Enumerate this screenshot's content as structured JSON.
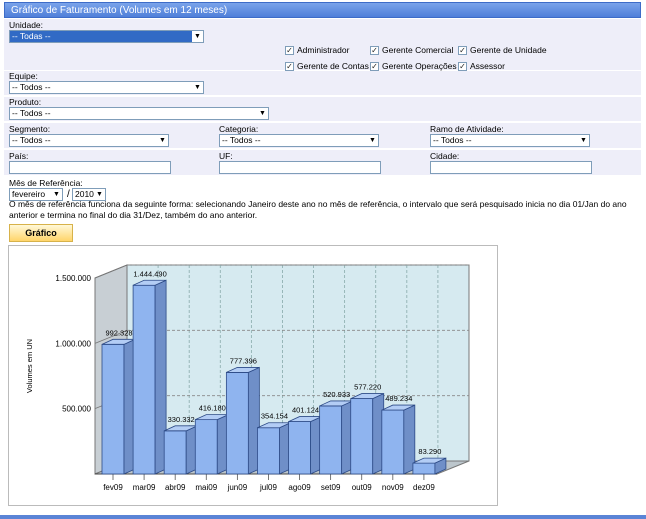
{
  "title": "Gráfico de Faturamento (Volumes em 12 meses)",
  "filters": {
    "unidade_label": "Unidade:",
    "unidade_value": "-- Todas --",
    "equipe_label": "Equipe:",
    "equipe_value": "-- Todos --",
    "produto_label": "Produto:",
    "produto_value": "-- Todos --",
    "segmento_label": "Segmento:",
    "segmento_value": "-- Todos --",
    "categoria_label": "Categoria:",
    "categoria_value": "-- Todos --",
    "ramo_label": "Ramo de Atividade:",
    "ramo_value": "-- Todos --",
    "pais_label": "País:",
    "uf_label": "UF:",
    "cidade_label": "Cidade:",
    "mes_label": "Mês de Referência:",
    "mes_value": "fevereiro",
    "ano_sep": "/",
    "ano_value": "2010"
  },
  "roles": [
    {
      "label": "Administrador",
      "checked": true
    },
    {
      "label": "Gerente Comercial",
      "checked": true
    },
    {
      "label": "Gerente de Unidade",
      "checked": true
    },
    {
      "label": "Gerente de Contas",
      "checked": true
    },
    {
      "label": "Gerente Operações",
      "checked": true
    },
    {
      "label": "Assessor",
      "checked": true
    }
  ],
  "info_text": "O mês de referência funciona da seguinte forma: selecionando Janeiro deste ano no mês de referência, o intervalo que será pesquisado inicia no dia 01/Jan do ano anterior e termina no final do dia 31/Dez, também do ano anterior.",
  "button_label": "Gráfico",
  "icons": {
    "check": "check-icon",
    "dropdown": "chevron-down-icon"
  },
  "colors": {
    "bar_front": "#8fb4ef",
    "bar_side": "#6f8fc8",
    "bar_top": "#b3cdf5",
    "plot_bg": "#d6eaf0",
    "title_bar": "#5b88dc"
  },
  "chart_data": {
    "type": "bar",
    "ylabel": "Volumes em UN",
    "categories": [
      "fev09",
      "mar09",
      "abr09",
      "mai09",
      "jun09",
      "jul09",
      "ago09",
      "set09",
      "out09",
      "nov09",
      "dez09"
    ],
    "values": [
      992328,
      1444490,
      330332,
      416180,
      777396,
      354154,
      401124,
      520933,
      577220,
      489234,
      83290
    ],
    "value_labels": [
      "992.328",
      "1.444.490",
      "330.332",
      "416.180",
      "777.396",
      "354.154",
      "401.124",
      "520.933",
      "577.220",
      "489.234",
      "83.290"
    ],
    "yticks": [
      500000,
      1000000,
      1500000
    ],
    "ytick_labels": [
      "500.000",
      "1.000.000",
      "1.500.000"
    ],
    "ylim": [
      0,
      1500000
    ],
    "grid": true
  }
}
